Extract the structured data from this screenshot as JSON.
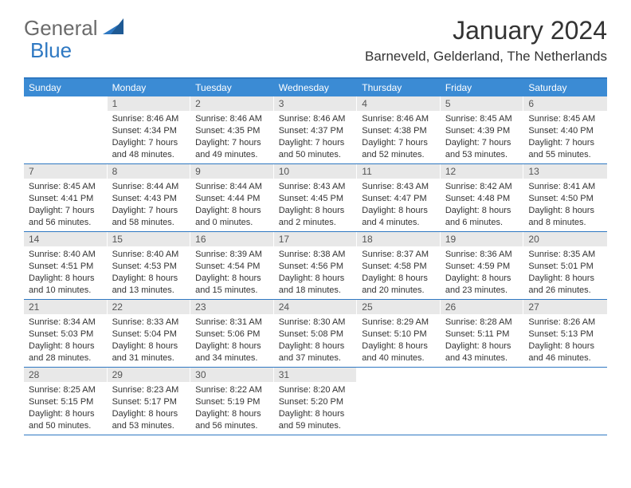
{
  "logo": {
    "text_gray": "General",
    "text_blue": "Blue"
  },
  "title": "January 2024",
  "location": "Barneveld, Gelderland, The Netherlands",
  "colors": {
    "header_bg": "#3b8bd4",
    "border": "#2e78c2",
    "daynum_bg": "#e8e8e8",
    "text": "#333333"
  },
  "day_headers": [
    "Sunday",
    "Monday",
    "Tuesday",
    "Wednesday",
    "Thursday",
    "Friday",
    "Saturday"
  ],
  "weeks": [
    [
      {
        "n": "",
        "sr": "",
        "ss": "",
        "dl": ""
      },
      {
        "n": "1",
        "sr": "Sunrise: 8:46 AM",
        "ss": "Sunset: 4:34 PM",
        "dl": "Daylight: 7 hours and 48 minutes."
      },
      {
        "n": "2",
        "sr": "Sunrise: 8:46 AM",
        "ss": "Sunset: 4:35 PM",
        "dl": "Daylight: 7 hours and 49 minutes."
      },
      {
        "n": "3",
        "sr": "Sunrise: 8:46 AM",
        "ss": "Sunset: 4:37 PM",
        "dl": "Daylight: 7 hours and 50 minutes."
      },
      {
        "n": "4",
        "sr": "Sunrise: 8:46 AM",
        "ss": "Sunset: 4:38 PM",
        "dl": "Daylight: 7 hours and 52 minutes."
      },
      {
        "n": "5",
        "sr": "Sunrise: 8:45 AM",
        "ss": "Sunset: 4:39 PM",
        "dl": "Daylight: 7 hours and 53 minutes."
      },
      {
        "n": "6",
        "sr": "Sunrise: 8:45 AM",
        "ss": "Sunset: 4:40 PM",
        "dl": "Daylight: 7 hours and 55 minutes."
      }
    ],
    [
      {
        "n": "7",
        "sr": "Sunrise: 8:45 AM",
        "ss": "Sunset: 4:41 PM",
        "dl": "Daylight: 7 hours and 56 minutes."
      },
      {
        "n": "8",
        "sr": "Sunrise: 8:44 AM",
        "ss": "Sunset: 4:43 PM",
        "dl": "Daylight: 7 hours and 58 minutes."
      },
      {
        "n": "9",
        "sr": "Sunrise: 8:44 AM",
        "ss": "Sunset: 4:44 PM",
        "dl": "Daylight: 8 hours and 0 minutes."
      },
      {
        "n": "10",
        "sr": "Sunrise: 8:43 AM",
        "ss": "Sunset: 4:45 PM",
        "dl": "Daylight: 8 hours and 2 minutes."
      },
      {
        "n": "11",
        "sr": "Sunrise: 8:43 AM",
        "ss": "Sunset: 4:47 PM",
        "dl": "Daylight: 8 hours and 4 minutes."
      },
      {
        "n": "12",
        "sr": "Sunrise: 8:42 AM",
        "ss": "Sunset: 4:48 PM",
        "dl": "Daylight: 8 hours and 6 minutes."
      },
      {
        "n": "13",
        "sr": "Sunrise: 8:41 AM",
        "ss": "Sunset: 4:50 PM",
        "dl": "Daylight: 8 hours and 8 minutes."
      }
    ],
    [
      {
        "n": "14",
        "sr": "Sunrise: 8:40 AM",
        "ss": "Sunset: 4:51 PM",
        "dl": "Daylight: 8 hours and 10 minutes."
      },
      {
        "n": "15",
        "sr": "Sunrise: 8:40 AM",
        "ss": "Sunset: 4:53 PM",
        "dl": "Daylight: 8 hours and 13 minutes."
      },
      {
        "n": "16",
        "sr": "Sunrise: 8:39 AM",
        "ss": "Sunset: 4:54 PM",
        "dl": "Daylight: 8 hours and 15 minutes."
      },
      {
        "n": "17",
        "sr": "Sunrise: 8:38 AM",
        "ss": "Sunset: 4:56 PM",
        "dl": "Daylight: 8 hours and 18 minutes."
      },
      {
        "n": "18",
        "sr": "Sunrise: 8:37 AM",
        "ss": "Sunset: 4:58 PM",
        "dl": "Daylight: 8 hours and 20 minutes."
      },
      {
        "n": "19",
        "sr": "Sunrise: 8:36 AM",
        "ss": "Sunset: 4:59 PM",
        "dl": "Daylight: 8 hours and 23 minutes."
      },
      {
        "n": "20",
        "sr": "Sunrise: 8:35 AM",
        "ss": "Sunset: 5:01 PM",
        "dl": "Daylight: 8 hours and 26 minutes."
      }
    ],
    [
      {
        "n": "21",
        "sr": "Sunrise: 8:34 AM",
        "ss": "Sunset: 5:03 PM",
        "dl": "Daylight: 8 hours and 28 minutes."
      },
      {
        "n": "22",
        "sr": "Sunrise: 8:33 AM",
        "ss": "Sunset: 5:04 PM",
        "dl": "Daylight: 8 hours and 31 minutes."
      },
      {
        "n": "23",
        "sr": "Sunrise: 8:31 AM",
        "ss": "Sunset: 5:06 PM",
        "dl": "Daylight: 8 hours and 34 minutes."
      },
      {
        "n": "24",
        "sr": "Sunrise: 8:30 AM",
        "ss": "Sunset: 5:08 PM",
        "dl": "Daylight: 8 hours and 37 minutes."
      },
      {
        "n": "25",
        "sr": "Sunrise: 8:29 AM",
        "ss": "Sunset: 5:10 PM",
        "dl": "Daylight: 8 hours and 40 minutes."
      },
      {
        "n": "26",
        "sr": "Sunrise: 8:28 AM",
        "ss": "Sunset: 5:11 PM",
        "dl": "Daylight: 8 hours and 43 minutes."
      },
      {
        "n": "27",
        "sr": "Sunrise: 8:26 AM",
        "ss": "Sunset: 5:13 PM",
        "dl": "Daylight: 8 hours and 46 minutes."
      }
    ],
    [
      {
        "n": "28",
        "sr": "Sunrise: 8:25 AM",
        "ss": "Sunset: 5:15 PM",
        "dl": "Daylight: 8 hours and 50 minutes."
      },
      {
        "n": "29",
        "sr": "Sunrise: 8:23 AM",
        "ss": "Sunset: 5:17 PM",
        "dl": "Daylight: 8 hours and 53 minutes."
      },
      {
        "n": "30",
        "sr": "Sunrise: 8:22 AM",
        "ss": "Sunset: 5:19 PM",
        "dl": "Daylight: 8 hours and 56 minutes."
      },
      {
        "n": "31",
        "sr": "Sunrise: 8:20 AM",
        "ss": "Sunset: 5:20 PM",
        "dl": "Daylight: 8 hours and 59 minutes."
      },
      {
        "n": "",
        "sr": "",
        "ss": "",
        "dl": ""
      },
      {
        "n": "",
        "sr": "",
        "ss": "",
        "dl": ""
      },
      {
        "n": "",
        "sr": "",
        "ss": "",
        "dl": ""
      }
    ]
  ]
}
